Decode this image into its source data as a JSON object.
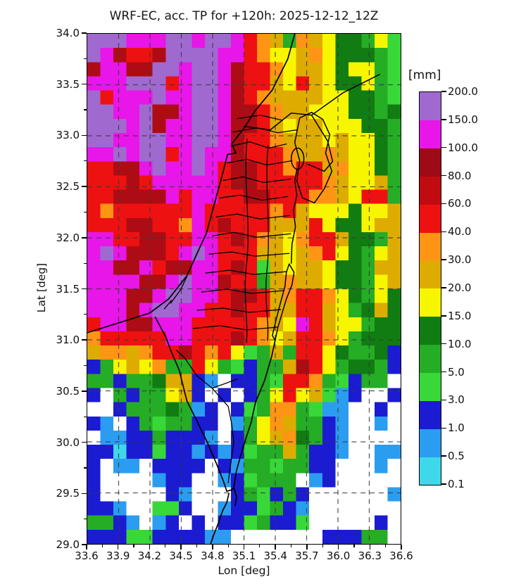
{
  "figure": {
    "title": "WRF-EC, acc. TP for +120h: 2025-12-12_12Z",
    "units_label": "[mm]"
  },
  "chart_data": {
    "type": "heatmap",
    "title": "WRF-EC, acc. TP for +120h: 2025-12-12_12Z",
    "xlabel": "Lon [deg]",
    "ylabel": "Lat [deg]",
    "xlim": [
      33.6,
      36.6
    ],
    "ylim": [
      29.0,
      34.0
    ],
    "xtick_labels": [
      "33.6",
      "33.9",
      "34.2",
      "34.5",
      "34.8",
      "35.1",
      "35.4",
      "35.7",
      "36.0",
      "36.3",
      "36.6"
    ],
    "ytick_labels": [
      "34.0",
      "33.5",
      "33.0",
      "32.5",
      "32.0",
      "31.5",
      "31.0",
      "30.5",
      "30.0",
      "29.5",
      "29.0"
    ],
    "grid": true,
    "grid_style": "dashed dark-gray at every major tick",
    "colorbar": {
      "label": "[mm]",
      "tick_labels_bottom_to_top": [
        "0.1",
        "0.5",
        "1.0",
        "3.0",
        "5.0",
        "10.0",
        "15.0",
        "20.0",
        "30.0",
        "40.0",
        "60.0",
        "80.0",
        "100.0",
        "150.0",
        "200.0"
      ],
      "segment_colors_bottom_to_top": [
        "#3fd8ea",
        "#2b9df0",
        "#1b1bd2",
        "#38d838",
        "#25ad25",
        "#117c11",
        "#f8f500",
        "#deac00",
        "#ff9415",
        "#ee1111",
        "#c00c10",
        "#9e0b16",
        "#e816e8",
        "#a069d0"
      ],
      "segment_ranges_mm_bottom_to_top": [
        "0.1-0.5",
        "0.5-1.0",
        "1.0-3.0",
        "3.0-5.0",
        "5.0-10.0",
        "10.0-15.0",
        "15.0-20.0",
        "20.0-30.0",
        "30.0-40.0",
        "40.0-60.0",
        "60.0-80.0",
        "80.0-100.0",
        "100.0-150.0",
        "150.0-200.0"
      ]
    },
    "field_grid": {
      "description": "Coarse 24x36 reconstruction of the accumulated precipitation field; one character per cell, row 1 = lat 34.0 (top), col 1 = lon 33.6 (left).",
      "ncols": 24,
      "nrows": 36,
      "palette": {
        "P": "#a069d0",
        "M": "#e816e8",
        "D": "#ae0c14",
        "R": "#ee1111",
        "O": "#ff9415",
        "G": "#deac00",
        "Y": "#f8f500",
        "F": "#117c11",
        "N": "#25ad25",
        "L": "#38d838",
        "B": "#1b1bd2",
        "A": "#2b9df0",
        "C": "#3fd8ea",
        "W": "#ffffff"
      },
      "legend_mm": {
        "P": "150-200",
        "M": "100-150",
        "D": "60-100",
        "R": "40-60",
        "O": "30-40",
        "G": "20-30",
        "Y": "15-20",
        "F": "10-15",
        "N": "5-10",
        "L": "3-5",
        "B": "1-3",
        "A": "0.5-1",
        "C": "0.1-0.5",
        "W": "< 0.1"
      },
      "rows": [
        "PPPMMMPPMPPMROGNOGYFFNYL",
        "PMDRRDPPPPMMROYYGOYFFFNL",
        "DMMDDPPMPPMDRROYGGYFYYNL",
        "MMMPPPRMPPMDRRGYRGYFFYNL",
        "PRMMMPMMPPMDROGGGGYYFFNL",
        "PPMMPDDMPPMDDROGGYYYFFNF",
        "PPPMPDMMPPMDDRGYGGYYYFFN",
        "PPMMPPMMPPMDRROGGGYGYYFN",
        "MMPMPPRMPMMDRRROGGOGYYFN",
        "RRDDMPMMPMRDDRRORRGOYYFN",
        "RRRDRMMMMMRDDRRRRROGYYGN",
        "RRDDDDMRMMRRDDRRROOGYRRN",
        "RORRRRRRMRRRRRORGYYYFYYG",
        "RRRDDRROMRDRRRGGGRYFFYGG",
        "MMRRDDRRMMRDROGYORRGFFNG",
        "MPMDDDRMPMRRRGGYGORYFNYG",
        "MMDDMRDDMMRDRLGYGGYFFNGG",
        "MMMMDDMPMMDRRNGOGGYFFNYG",
        "MMMDDMPPMMRDDRGORROYFNYF",
        "MMMDMPPMMRRDRRGGRRGYNFGF",
        "RMMDDMMMRRRRROGYMRGYYNFF",
        "ORRRRRMMRRRDROYGRROYNFFF",
        "GOOGORRDRORYLNGNRRYFNNFB",
        "BNYGYONNRYNLBNNGDRYNFFNB",
        "NNBNNFGGBAWBBNLRRONLBNNW",
        "BWNBNNYGBWBWBNYRYGLABWWB",
        "WWBNNNFNABWBLNOONLAAWWBW",
        "BAWBNLNNBBWANYOGNNBAWWAW",
        "WAABBNBBBAWBNYGOFNBAWWWW",
        "BBCBBLBBABABLNNGNBBAWWAA",
        "BWAAWBBBBWBANNLNNBBWWWAW",
        "BWWWWABBWWABLNNNWABWWWWW",
        "BWWWWWBAWWWBNLBNBWWWWWWA",
        "BBAWWLLBWWABBLNBAWWWWWWW",
        "NNBAWABWBWBBLNBBLWWWWWBW",
        "BBBLLBBBBAAWWWWWWWBBBNNW"
      ]
    }
  }
}
